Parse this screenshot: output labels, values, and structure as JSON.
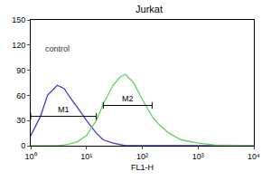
{
  "chart_data": {
    "type": "line",
    "title": "Jurkat",
    "x_label": "FL1-H",
    "log": "x",
    "grid": false,
    "x": [
      1,
      1.5,
      2,
      3,
      4,
      5,
      7,
      10,
      15,
      20,
      30,
      40,
      50,
      70,
      100,
      150,
      200,
      300,
      500,
      1000,
      2000,
      5000,
      10000
    ],
    "series": [
      {
        "color": "#3a3ac8",
        "values": [
          12,
          35,
          60,
          72,
          68,
          58,
          45,
          30,
          15,
          7,
          3,
          1,
          0,
          0,
          0,
          0,
          0,
          0,
          0,
          0,
          0,
          0,
          0
        ]
      },
      {
        "color": "#5fd35f",
        "values": [
          0,
          0,
          0,
          0,
          1,
          2,
          5,
          12,
          30,
          50,
          72,
          82,
          85,
          75,
          55,
          35,
          25,
          15,
          7,
          3,
          1,
          0,
          0
        ]
      }
    ],
    "xlim": [
      1,
      10000
    ],
    "xticks": [
      {
        "value": 1,
        "label": "10⁰"
      },
      {
        "value": 10,
        "label": "10¹"
      },
      {
        "value": 100,
        "label": "10²"
      },
      {
        "value": 1000,
        "label": "10³"
      },
      {
        "value": 10000,
        "label": "10⁴"
      }
    ],
    "ylim": [
      0,
      150
    ],
    "yticks": [
      0,
      30,
      60,
      90,
      120,
      150
    ],
    "annotations": [
      {
        "text": "control",
        "x": 3,
        "y": 115
      }
    ],
    "gates": [
      {
        "label": "M1",
        "x": [
          1,
          15
        ],
        "y": 35
      },
      {
        "label": "M2",
        "x": [
          20,
          150
        ],
        "y": 48
      }
    ]
  }
}
